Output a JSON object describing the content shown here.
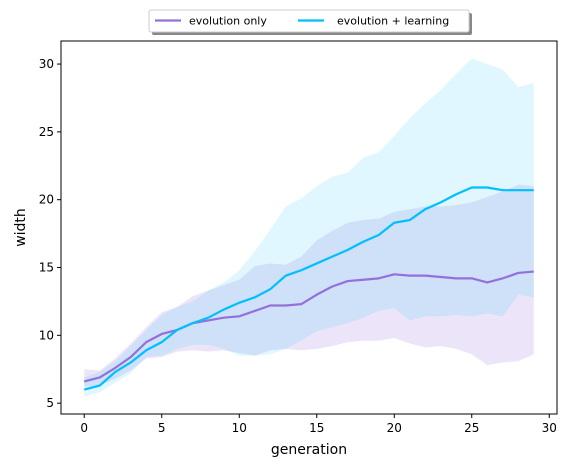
{
  "chart_data": {
    "type": "line",
    "xlabel": "generation",
    "ylabel": "width",
    "xlim": [
      -1.5,
      30.5
    ],
    "ylim": [
      4.2,
      31.7
    ],
    "xticks": [
      0,
      5,
      10,
      15,
      20,
      25,
      30
    ],
    "yticks": [
      5,
      10,
      15,
      20,
      25,
      30
    ],
    "grid": false,
    "legend_position": "top-center",
    "x": [
      0,
      1,
      2,
      3,
      4,
      5,
      6,
      7,
      8,
      9,
      10,
      11,
      12,
      13,
      14,
      15,
      16,
      17,
      18,
      19,
      20,
      21,
      22,
      23,
      24,
      25,
      26,
      27,
      28,
      29
    ],
    "series": [
      {
        "name": "evolution only",
        "color": "#9370DB",
        "values": [
          6.6,
          6.9,
          7.6,
          8.4,
          9.5,
          10.1,
          10.4,
          10.9,
          11.1,
          11.3,
          11.4,
          11.8,
          12.2,
          12.2,
          12.3,
          13.0,
          13.6,
          14.0,
          14.1,
          14.2,
          14.5,
          14.4,
          14.4,
          14.3,
          14.2,
          14.2,
          13.9,
          14.2,
          14.6,
          14.7
        ],
        "lower": [
          6.2,
          6.3,
          6.8,
          7.4,
          8.3,
          8.4,
          8.8,
          8.9,
          8.8,
          8.9,
          8.7,
          8.5,
          8.9,
          9.0,
          8.9,
          9.0,
          9.2,
          9.5,
          9.6,
          9.6,
          9.8,
          9.4,
          9.1,
          9.2,
          9.0,
          8.6,
          7.8,
          8.0,
          8.1,
          8.6
        ],
        "upper": [
          7.5,
          7.4,
          8.3,
          9.4,
          10.6,
          11.7,
          12.1,
          12.9,
          13.3,
          13.7,
          14.1,
          15.1,
          15.3,
          15.2,
          15.8,
          17.0,
          17.7,
          18.3,
          18.5,
          18.6,
          19.1,
          19.3,
          19.5,
          19.5,
          19.6,
          19.8,
          20.2,
          20.6,
          21.1,
          21.0
        ]
      },
      {
        "name": "evolution + learning",
        "color": "#00BFFF",
        "values": [
          6.0,
          6.3,
          7.3,
          8.0,
          8.9,
          9.5,
          10.4,
          10.9,
          11.3,
          11.9,
          12.4,
          12.8,
          13.4,
          14.4,
          14.8,
          15.3,
          15.8,
          16.3,
          16.9,
          17.4,
          18.3,
          18.5,
          19.3,
          19.8,
          20.4,
          20.9,
          20.9,
          20.7,
          20.7,
          20.7
        ],
        "lower": [
          5.5,
          5.8,
          6.5,
          7.2,
          8.4,
          8.5,
          9.0,
          9.3,
          9.3,
          9.0,
          8.5,
          8.5,
          8.6,
          9.0,
          9.6,
          10.3,
          10.6,
          10.9,
          11.3,
          11.8,
          12.0,
          11.1,
          11.4,
          11.4,
          11.5,
          11.4,
          11.6,
          11.4,
          13.0,
          12.8
        ],
        "upper": [
          6.9,
          7.3,
          8.1,
          9.2,
          10.4,
          11.5,
          12.1,
          12.5,
          13.3,
          13.9,
          14.8,
          16.2,
          17.8,
          19.5,
          20.1,
          21.0,
          21.7,
          22.0,
          23.1,
          23.5,
          24.7,
          26.0,
          27.1,
          28.1,
          29.3,
          30.4,
          30.0,
          29.6,
          28.3,
          28.6
        ]
      }
    ]
  }
}
